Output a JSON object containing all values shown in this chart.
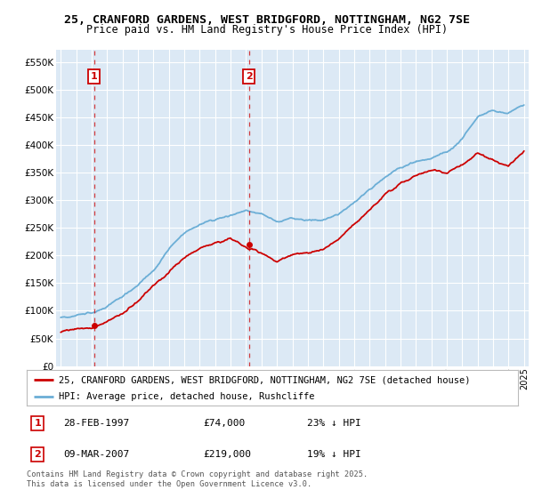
{
  "title": "25, CRANFORD GARDENS, WEST BRIDGFORD, NOTTINGHAM, NG2 7SE",
  "subtitle": "Price paid vs. HM Land Registry's House Price Index (HPI)",
  "legend_line1": "25, CRANFORD GARDENS, WEST BRIDGFORD, NOTTINGHAM, NG2 7SE (detached house)",
  "legend_line2": "HPI: Average price, detached house, Rushcliffe",
  "copyright": "Contains HM Land Registry data © Crown copyright and database right 2025.\nThis data is licensed under the Open Government Licence v3.0.",
  "sale1_date": "28-FEB-1997",
  "sale1_price": 74000,
  "sale1_hpi_pct": "23% ↓ HPI",
  "sale1_year": 1997.16,
  "sale2_date": "09-MAR-2007",
  "sale2_price": 219000,
  "sale2_hpi_pct": "19% ↓ HPI",
  "sale2_year": 2007.19,
  "ylim": [
    0,
    572000
  ],
  "yticks": [
    0,
    50000,
    100000,
    150000,
    200000,
    250000,
    300000,
    350000,
    400000,
    450000,
    500000,
    550000
  ],
  "red_color": "#cc0000",
  "blue_color": "#6baed6",
  "bg_color": "#dce9f5",
  "grid_color": "#ffffff"
}
